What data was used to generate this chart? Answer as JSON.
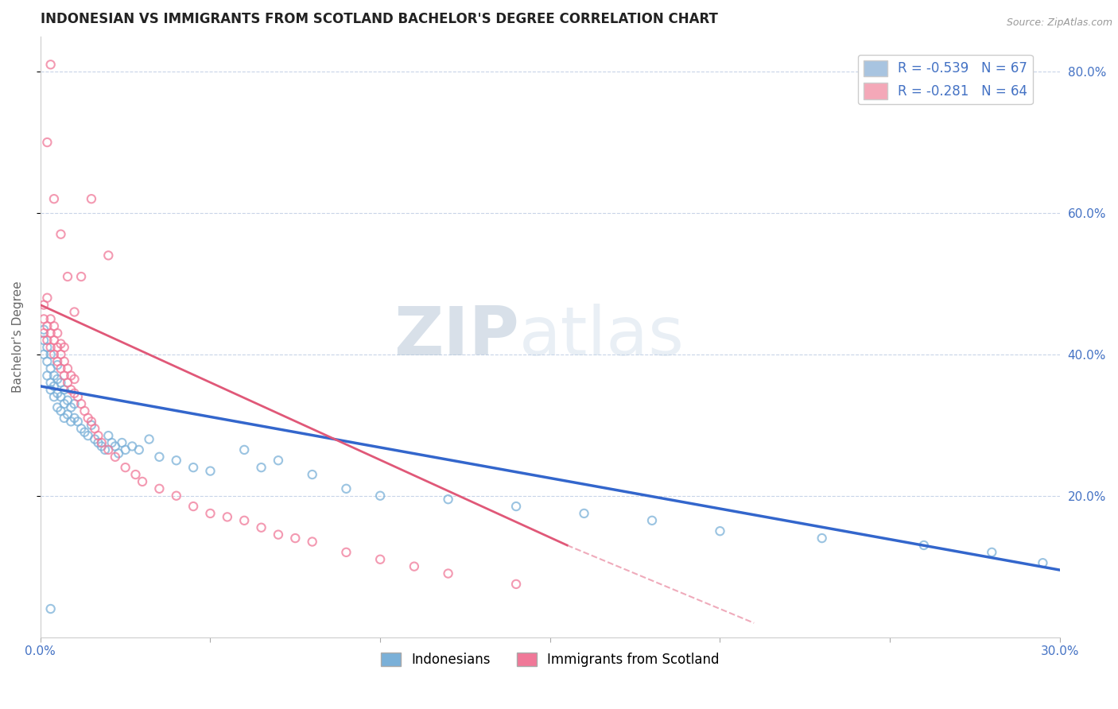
{
  "title": "INDONESIAN VS IMMIGRANTS FROM SCOTLAND BACHELOR'S DEGREE CORRELATION CHART",
  "source": "Source: ZipAtlas.com",
  "ylabel": "Bachelor's Degree",
  "xlim": [
    0.0,
    0.3
  ],
  "ylim": [
    0.0,
    0.85
  ],
  "legend_entries": [
    {
      "label": "R = -0.539   N = 67",
      "color": "#a8c4e0"
    },
    {
      "label": "R = -0.281   N = 64",
      "color": "#f4a8b8"
    }
  ],
  "indonesians_color": "#7ab0d8",
  "scotland_color": "#f07898",
  "trend_indonesians_color": "#3366cc",
  "trend_scotland_color": "#e05878",
  "background_color": "#ffffff",
  "grid_color": "#c8d4e8",
  "watermark_zip": "ZIP",
  "watermark_atlas": "atlas",
  "title_fontsize": 12,
  "label_fontsize": 11,
  "tick_fontsize": 11,
  "legend_fontsize": 12,
  "indonesians_x": [
    0.001,
    0.001,
    0.001,
    0.002,
    0.002,
    0.002,
    0.003,
    0.003,
    0.003,
    0.003,
    0.004,
    0.004,
    0.004,
    0.005,
    0.005,
    0.005,
    0.006,
    0.006,
    0.006,
    0.007,
    0.007,
    0.007,
    0.008,
    0.008,
    0.009,
    0.009,
    0.01,
    0.01,
    0.011,
    0.012,
    0.013,
    0.014,
    0.015,
    0.016,
    0.017,
    0.018,
    0.019,
    0.02,
    0.021,
    0.022,
    0.023,
    0.024,
    0.025,
    0.027,
    0.029,
    0.032,
    0.035,
    0.04,
    0.045,
    0.05,
    0.06,
    0.065,
    0.07,
    0.08,
    0.09,
    0.1,
    0.12,
    0.14,
    0.16,
    0.18,
    0.2,
    0.23,
    0.26,
    0.28,
    0.295,
    0.003,
    0.005
  ],
  "indonesians_y": [
    0.435,
    0.42,
    0.4,
    0.39,
    0.37,
    0.41,
    0.38,
    0.36,
    0.4,
    0.35,
    0.37,
    0.34,
    0.355,
    0.345,
    0.365,
    0.325,
    0.34,
    0.36,
    0.32,
    0.33,
    0.35,
    0.31,
    0.335,
    0.315,
    0.325,
    0.305,
    0.31,
    0.33,
    0.305,
    0.295,
    0.29,
    0.285,
    0.3,
    0.28,
    0.275,
    0.27,
    0.265,
    0.285,
    0.275,
    0.27,
    0.26,
    0.275,
    0.265,
    0.27,
    0.265,
    0.28,
    0.255,
    0.25,
    0.24,
    0.235,
    0.265,
    0.24,
    0.25,
    0.23,
    0.21,
    0.2,
    0.195,
    0.185,
    0.175,
    0.165,
    0.15,
    0.14,
    0.13,
    0.12,
    0.105,
    0.04,
    0.385
  ],
  "scotland_x": [
    0.001,
    0.001,
    0.001,
    0.002,
    0.002,
    0.002,
    0.003,
    0.003,
    0.003,
    0.004,
    0.004,
    0.004,
    0.005,
    0.005,
    0.005,
    0.006,
    0.006,
    0.006,
    0.007,
    0.007,
    0.007,
    0.008,
    0.008,
    0.009,
    0.009,
    0.01,
    0.01,
    0.011,
    0.012,
    0.013,
    0.014,
    0.015,
    0.016,
    0.017,
    0.018,
    0.02,
    0.022,
    0.025,
    0.028,
    0.03,
    0.035,
    0.04,
    0.045,
    0.05,
    0.06,
    0.065,
    0.07,
    0.08,
    0.09,
    0.1,
    0.11,
    0.12,
    0.14,
    0.055,
    0.075,
    0.003,
    0.002,
    0.004,
    0.006,
    0.008,
    0.01,
    0.012,
    0.015,
    0.02
  ],
  "scotland_y": [
    0.43,
    0.45,
    0.47,
    0.42,
    0.44,
    0.48,
    0.41,
    0.43,
    0.45,
    0.4,
    0.42,
    0.44,
    0.39,
    0.41,
    0.43,
    0.38,
    0.4,
    0.415,
    0.37,
    0.39,
    0.41,
    0.36,
    0.38,
    0.35,
    0.37,
    0.345,
    0.365,
    0.34,
    0.33,
    0.32,
    0.31,
    0.305,
    0.295,
    0.285,
    0.275,
    0.265,
    0.255,
    0.24,
    0.23,
    0.22,
    0.21,
    0.2,
    0.185,
    0.175,
    0.165,
    0.155,
    0.145,
    0.135,
    0.12,
    0.11,
    0.1,
    0.09,
    0.075,
    0.17,
    0.14,
    0.81,
    0.7,
    0.62,
    0.57,
    0.51,
    0.46,
    0.51,
    0.62,
    0.54
  ]
}
